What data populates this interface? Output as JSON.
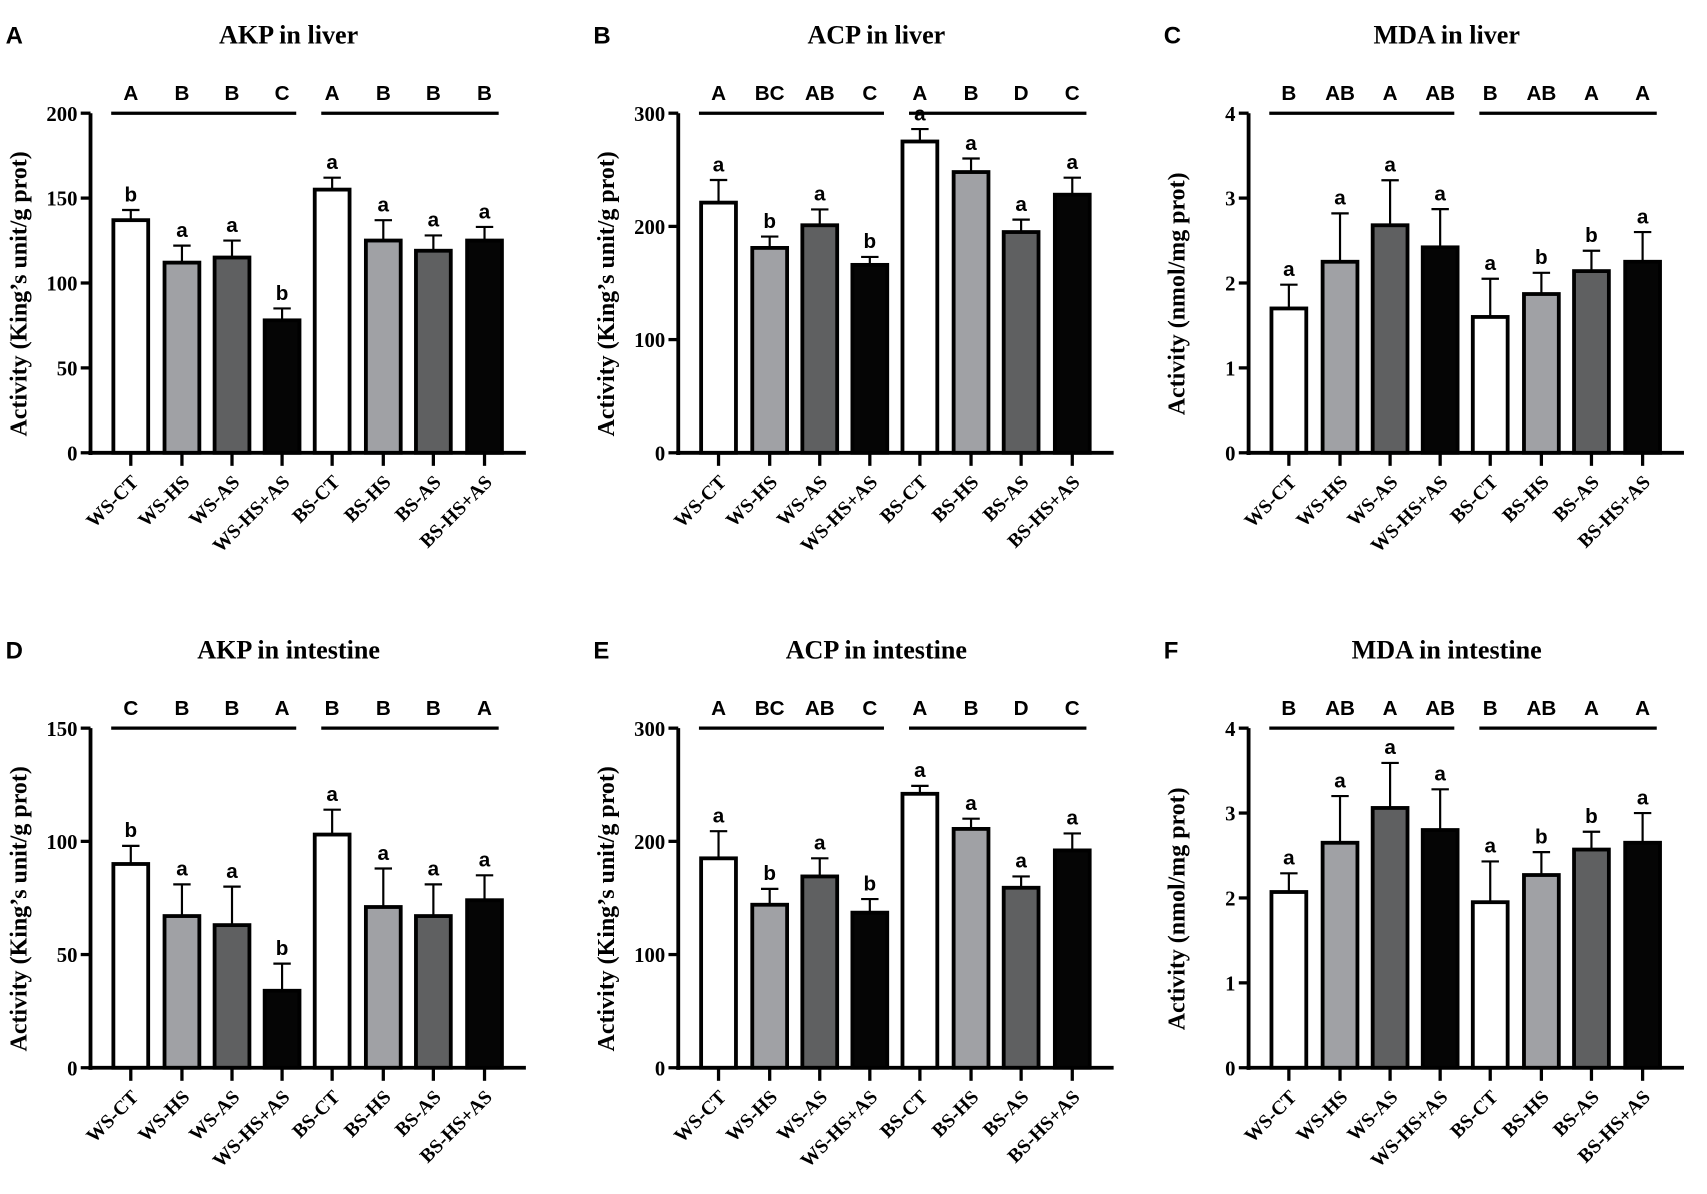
{
  "chart_data": [
    {
      "panel": "A",
      "type": "bar",
      "title": "AKP in liver",
      "ylabel": "Activity (King’s unit/g prot)",
      "ylim": [
        0,
        200
      ],
      "yticks": [
        0,
        50,
        100,
        150,
        200
      ],
      "categories": [
        "WS-CT",
        "WS-HS",
        "WS-AS",
        "WS-HS+AS",
        "BS-CT",
        "BS-HS",
        "BS-AS",
        "BS-HS+AS"
      ],
      "values": [
        137,
        112,
        115,
        78,
        155,
        125,
        119,
        125
      ],
      "errors": [
        6,
        10,
        10,
        7,
        7,
        12,
        9,
        8
      ],
      "lower_letters": [
        "b",
        "a",
        "a",
        "b",
        "a",
        "a",
        "a",
        "a"
      ],
      "upper_letters": [
        "A",
        "B",
        "B",
        "C",
        "A",
        "B",
        "B",
        "B"
      ]
    },
    {
      "panel": "B",
      "type": "bar",
      "title": "ACP in liver",
      "ylabel": "Activity (King’s unit/g prot)",
      "ylim": [
        0,
        300
      ],
      "yticks": [
        0,
        100,
        200,
        300
      ],
      "categories": [
        "WS-CT",
        "WS-HS",
        "WS-AS",
        "WS-HS+AS",
        "BS-CT",
        "BS-HS",
        "BS-AS",
        "BS-HS+AS"
      ],
      "values": [
        221,
        181,
        201,
        166,
        275,
        248,
        195,
        228
      ],
      "errors": [
        20,
        10,
        14,
        7,
        11,
        12,
        11,
        15
      ],
      "lower_letters": [
        "a",
        "b",
        "a",
        "b",
        "a",
        "a",
        "a",
        "a"
      ],
      "upper_letters": [
        "A",
        "BC",
        "AB",
        "C",
        "A",
        "B",
        "D",
        "C"
      ]
    },
    {
      "panel": "C",
      "type": "bar",
      "title": "MDA in liver",
      "ylabel": "Activity (nmol/mg prot)",
      "ylim": [
        0,
        4
      ],
      "yticks": [
        0,
        1,
        2,
        3,
        4
      ],
      "categories": [
        "WS-CT",
        "WS-HS",
        "WS-AS",
        "WS-HS+AS",
        "BS-CT",
        "BS-HS",
        "BS-AS",
        "BS-HS+AS"
      ],
      "values": [
        1.7,
        2.25,
        2.68,
        2.42,
        1.6,
        1.87,
        2.14,
        2.25
      ],
      "errors": [
        0.28,
        0.57,
        0.53,
        0.45,
        0.45,
        0.25,
        0.24,
        0.35
      ],
      "lower_letters": [
        "a",
        "a",
        "a",
        "a",
        "a",
        "b",
        "b",
        "a"
      ],
      "upper_letters": [
        "B",
        "AB",
        "A",
        "AB",
        "B",
        "AB",
        "A",
        "A"
      ]
    },
    {
      "panel": "D",
      "type": "bar",
      "title": "AKP in intestine",
      "ylabel": "Activity (King’s unit/g prot)",
      "ylim": [
        0,
        150
      ],
      "yticks": [
        0,
        50,
        100,
        150
      ],
      "categories": [
        "WS-CT",
        "WS-HS",
        "WS-AS",
        "WS-HS+AS",
        "BS-CT",
        "BS-HS",
        "BS-AS",
        "BS-HS+AS"
      ],
      "values": [
        90,
        67,
        63,
        34,
        103,
        71,
        67,
        74
      ],
      "errors": [
        8,
        14,
        17,
        12,
        11,
        17,
        14,
        11
      ],
      "lower_letters": [
        "b",
        "a",
        "a",
        "b",
        "a",
        "a",
        "a",
        "a"
      ],
      "upper_letters": [
        "C",
        "B",
        "B",
        "A",
        "B",
        "B",
        "B",
        "A"
      ]
    },
    {
      "panel": "E",
      "type": "bar",
      "title": "ACP in intestine",
      "ylabel": "Activity (King’s unit/g prot)",
      "ylim": [
        0,
        300
      ],
      "yticks": [
        0,
        100,
        200,
        300
      ],
      "categories": [
        "WS-CT",
        "WS-HS",
        "WS-AS",
        "WS-HS+AS",
        "BS-CT",
        "BS-HS",
        "BS-AS",
        "BS-HS+AS"
      ],
      "values": [
        185,
        144,
        169,
        137,
        242,
        211,
        159,
        192
      ],
      "errors": [
        24,
        14,
        16,
        12,
        7,
        9,
        10,
        15
      ],
      "lower_letters": [
        "a",
        "b",
        "a",
        "b",
        "a",
        "a",
        "a",
        "a"
      ],
      "upper_letters": [
        "A",
        "BC",
        "AB",
        "C",
        "A",
        "B",
        "D",
        "C"
      ]
    },
    {
      "panel": "F",
      "type": "bar",
      "title": "MDA in intestine",
      "ylabel": "Activity (nmol/mg prot)",
      "ylim": [
        0,
        4
      ],
      "yticks": [
        0,
        1,
        2,
        3,
        4
      ],
      "categories": [
        "WS-CT",
        "WS-HS",
        "WS-AS",
        "WS-HS+AS",
        "BS-CT",
        "BS-HS",
        "BS-AS",
        "BS-HS+AS"
      ],
      "values": [
        2.07,
        2.65,
        3.06,
        2.8,
        1.95,
        2.27,
        2.57,
        2.65
      ],
      "errors": [
        0.22,
        0.55,
        0.53,
        0.48,
        0.48,
        0.27,
        0.21,
        0.35
      ],
      "lower_letters": [
        "a",
        "a",
        "a",
        "a",
        "a",
        "b",
        "b",
        "a"
      ],
      "upper_letters": [
        "B",
        "AB",
        "A",
        "AB",
        "B",
        "AB",
        "A",
        "A"
      ]
    }
  ],
  "colors": [
    "#ffffff",
    "#a0a1a5",
    "#5f6061",
    "#050505",
    "#ffffff",
    "#a0a1a5",
    "#5f6061",
    "#050505"
  ]
}
